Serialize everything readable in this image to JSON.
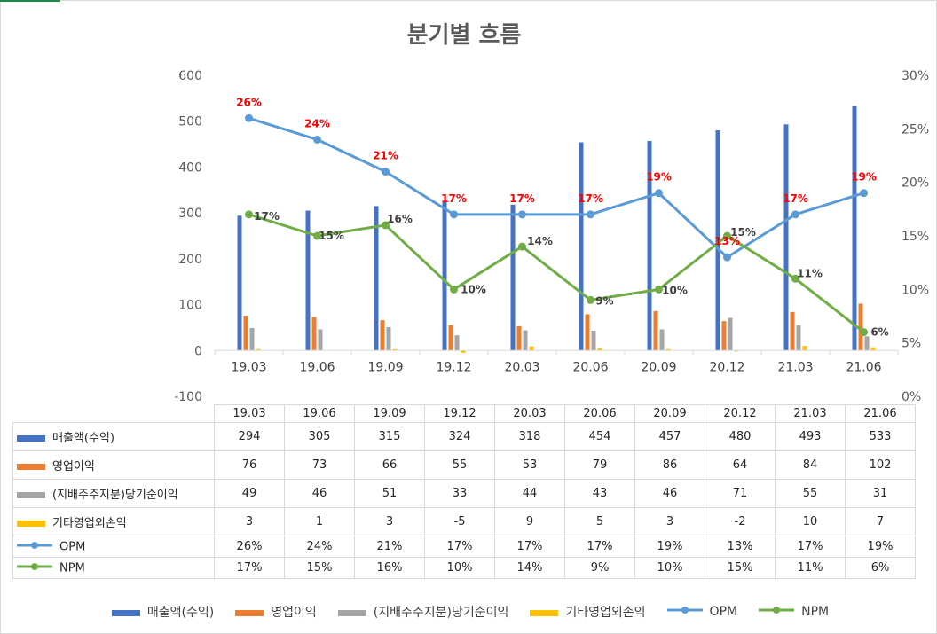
{
  "chart_data": {
    "type": "bar+line",
    "title": "분기별 흐름",
    "categories": [
      "19.03",
      "19.06",
      "19.09",
      "19.12",
      "20.03",
      "20.06",
      "20.09",
      "20.12",
      "21.03",
      "21.06"
    ],
    "y_left": {
      "min": -100,
      "max": 600,
      "step": 100,
      "ticks": [
        "-100",
        "0",
        "100",
        "200",
        "300",
        "400",
        "500",
        "600"
      ]
    },
    "y_right": {
      "min": 0,
      "max": 30,
      "step": 5,
      "ticks": [
        "0%",
        "5%",
        "10%",
        "15%",
        "20%",
        "25%",
        "30%"
      ]
    },
    "series": [
      {
        "name": "매출액(수익)",
        "type": "bar",
        "axis": "left",
        "color": "#4472c4",
        "values": [
          294,
          305,
          315,
          324,
          318,
          454,
          457,
          480,
          493,
          533
        ]
      },
      {
        "name": "영업이익",
        "type": "bar",
        "axis": "left",
        "color": "#ed7d31",
        "values": [
          76,
          73,
          66,
          55,
          53,
          79,
          86,
          64,
          84,
          102
        ]
      },
      {
        "name": "(지배주주지분)당기순이익",
        "type": "bar",
        "axis": "left",
        "color": "#a5a5a5",
        "values": [
          49,
          46,
          51,
          33,
          44,
          43,
          46,
          71,
          55,
          31
        ]
      },
      {
        "name": "기타영업외손익",
        "type": "bar",
        "axis": "left",
        "color": "#ffc000",
        "values": [
          3,
          1,
          3,
          -5,
          9,
          5,
          3,
          -2,
          10,
          7
        ]
      },
      {
        "name": "OPM",
        "type": "line",
        "axis": "right",
        "color": "#5b9bd5",
        "values": [
          26,
          24,
          21,
          17,
          17,
          17,
          19,
          13,
          17,
          19
        ],
        "labels": [
          "26%",
          "24%",
          "21%",
          "17%",
          "17%",
          "17%",
          "19%",
          "13%",
          "17%",
          "19%"
        ]
      },
      {
        "name": "NPM",
        "type": "line",
        "axis": "right",
        "color": "#70ad47",
        "values": [
          17,
          15,
          16,
          10,
          14,
          9,
          10,
          15,
          11,
          6
        ],
        "labels": [
          "17%",
          "15%",
          "16%",
          "10%",
          "14%",
          "9%",
          "10%",
          "15%",
          "11%",
          "6%"
        ]
      }
    ]
  }
}
